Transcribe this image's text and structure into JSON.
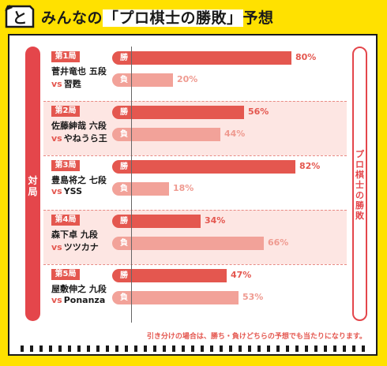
{
  "header": {
    "logo_char": "と",
    "title_prefix": "みんなの",
    "title_highlight": "「プロ棋士の勝敗」",
    "title_suffix": "予想"
  },
  "left_rail_label": "対局",
  "right_rail_label": "プロ棋士の勝敗",
  "win_label": "勝",
  "lose_label": "負",
  "footnote": "引き分けの場合は、勝ち・負けどちらの予想でも当たりになります。",
  "colors": {
    "accent": "#e4574f",
    "accent_light": "#f2a299",
    "background": "#ffe100"
  },
  "chart_data": {
    "type": "bar",
    "orientation": "horizontal",
    "xlim": [
      0,
      100
    ],
    "unit": "%",
    "categories": [
      "第1局",
      "第2局",
      "第3局",
      "第4局",
      "第5局"
    ],
    "series": [
      {
        "name": "勝",
        "values": [
          80,
          56,
          82,
          34,
          47
        ]
      },
      {
        "name": "負",
        "values": [
          20,
          44,
          18,
          66,
          53
        ]
      }
    ]
  },
  "games": [
    {
      "label": "第1局",
      "pro": "菅井竜也 五段",
      "vs": "vs",
      "opponent": "習甦",
      "win": 80,
      "lose": 20,
      "win_text": "80%",
      "lose_text": "20%"
    },
    {
      "label": "第2局",
      "pro": "佐藤紳哉 六段",
      "vs": "vs",
      "opponent": "やねうら王",
      "win": 56,
      "lose": 44,
      "win_text": "56%",
      "lose_text": "44%"
    },
    {
      "label": "第3局",
      "pro": "豊島将之 七段",
      "vs": "vs",
      "opponent": "YSS",
      "win": 82,
      "lose": 18,
      "win_text": "82%",
      "lose_text": "18%"
    },
    {
      "label": "第4局",
      "pro": "森下卓 九段",
      "vs": "vs",
      "opponent": "ツツカナ",
      "win": 34,
      "lose": 66,
      "win_text": "34%",
      "lose_text": "66%"
    },
    {
      "label": "第5局",
      "pro": "屋敷伸之 九段",
      "vs": "vs",
      "opponent": "Ponanza",
      "win": 47,
      "lose": 53,
      "win_text": "47%",
      "lose_text": "53%"
    }
  ]
}
